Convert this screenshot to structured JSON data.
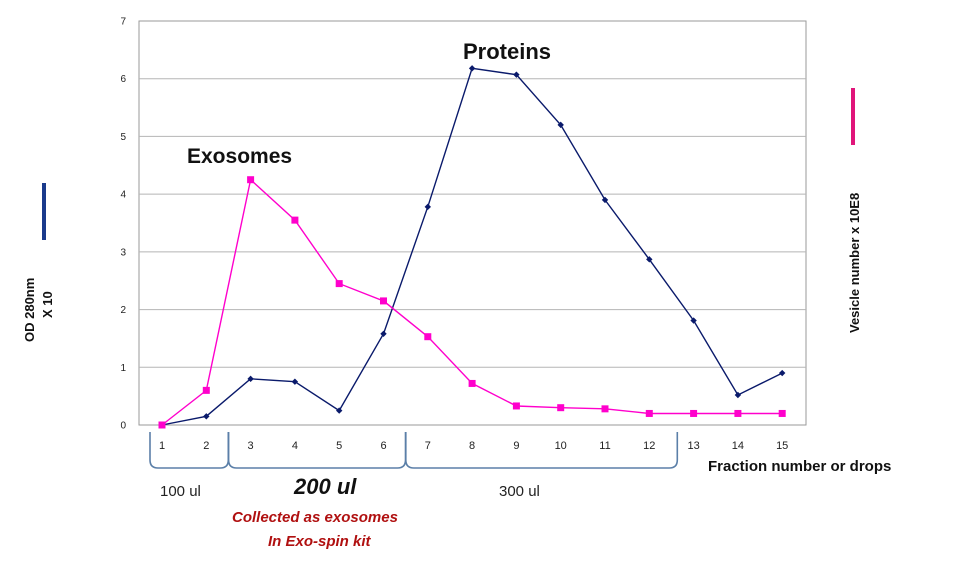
{
  "chart_data": {
    "type": "line",
    "categories": [
      "1",
      "2",
      "3",
      "4",
      "5",
      "6",
      "7",
      "8",
      "9",
      "10",
      "11",
      "12",
      "13",
      "14",
      "15"
    ],
    "series": [
      {
        "name": "Proteins",
        "color": "#0a1a6b",
        "marker": "diamond",
        "values": [
          0,
          0.15,
          0.8,
          0.75,
          0.25,
          1.58,
          3.78,
          6.18,
          6.07,
          5.2,
          3.9,
          2.87,
          1.81,
          0.52,
          0.9
        ]
      },
      {
        "name": "Exosomes",
        "color": "#ff00cc",
        "marker": "square",
        "values": [
          0,
          0.6,
          4.25,
          3.55,
          2.45,
          2.15,
          1.53,
          0.72,
          0.33,
          0.3,
          0.28,
          0.2,
          0.2,
          0.2,
          0.2
        ]
      }
    ],
    "ylim": [
      0,
      7
    ],
    "yticks": [
      "0",
      "1",
      "2",
      "3",
      "4",
      "5",
      "6",
      "7"
    ],
    "grid": "horizontal",
    "xlabel": "Fraction number or drops",
    "ylabel_left": [
      "OD 280nm",
      "X 10"
    ],
    "ylabel_right": "Vesicle number x 10E8",
    "left_axis_color": "#1a3a8c",
    "right_axis_color": "#e0157a",
    "annotations": {
      "proteins": "Proteins",
      "exosomes": "Exosomes"
    },
    "volume_groups": [
      {
        "label": "100 ul",
        "from": 1,
        "to": 2
      },
      {
        "label": "200 ul",
        "from": 3,
        "to": 6
      },
      {
        "label": "300 ul",
        "from": 7,
        "to": 12
      }
    ],
    "note_lines": [
      "Collected as exosomes",
      "In Exo-spin kit"
    ]
  }
}
